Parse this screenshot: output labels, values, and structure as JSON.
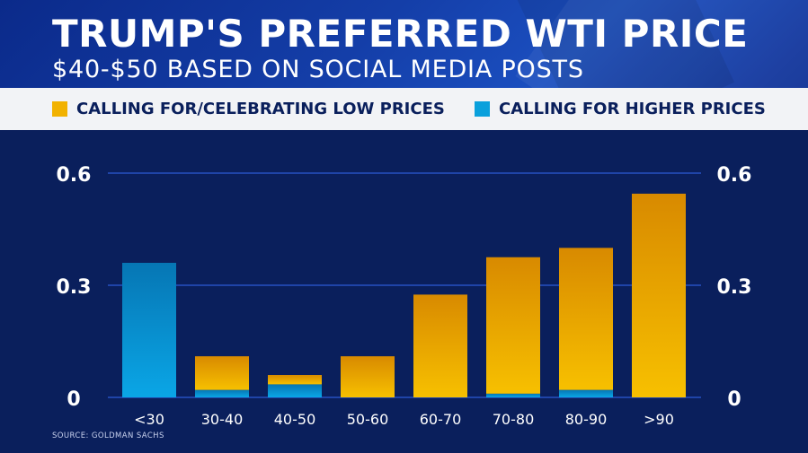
{
  "header": {
    "title": "TRUMP'S PREFERRED WTI PRICE",
    "subtitle": "$40-$50 BASED ON SOCIAL MEDIA POSTS"
  },
  "legend": {
    "low": {
      "label": "CALLING FOR/CELEBRATING LOW PRICES",
      "color": "#f2b200"
    },
    "high": {
      "label": "CALLING FOR HIGHER PRICES",
      "color": "#0aa0dc"
    }
  },
  "source": "SOURCE: GOLDMAN SACHS",
  "colors": {
    "background": "#0a1f5c",
    "grid": "#2c5bd6",
    "tick_text": "#ffffff"
  },
  "chart_data": {
    "type": "bar",
    "stacked": true,
    "categories": [
      "<30",
      "30-40",
      "40-50",
      "50-60",
      "60-70",
      "70-80",
      "80-90",
      ">90"
    ],
    "series": [
      {
        "name": "CALLING FOR HIGHER PRICES",
        "values": [
          0.36,
          0.02,
          0.035,
          0,
          0,
          0.01,
          0.02,
          0
        ]
      },
      {
        "name": "CALLING FOR/CELEBRATING LOW PRICES",
        "values": [
          0,
          0.09,
          0.025,
          0.11,
          0.275,
          0.365,
          0.38,
          0.545
        ]
      }
    ],
    "ylim": [
      0,
      0.6
    ],
    "yticks": [
      "0",
      "0.3",
      "0.6"
    ],
    "ytick_values": [
      0,
      0.3,
      0.6
    ],
    "y_axis_sides": [
      "left",
      "right"
    ],
    "grid": true,
    "legend_position": "top",
    "title": "",
    "xlabel": "",
    "ylabel": ""
  }
}
